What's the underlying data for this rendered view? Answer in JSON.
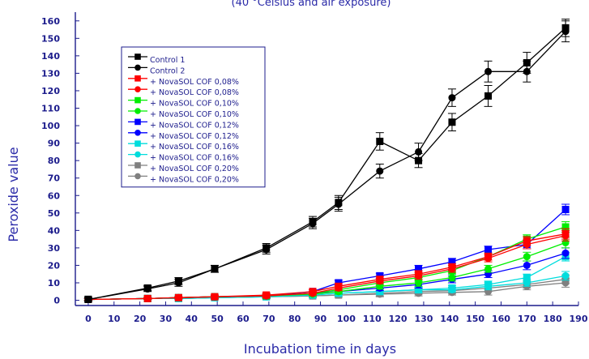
{
  "chart_data": {
    "type": "line",
    "title": "(40 °Celsius and air exposure)",
    "xlabel": "Incubation time in days",
    "ylabel": "Peroxide value",
    "xlim": [
      -5,
      190
    ],
    "ylim": [
      -3,
      165
    ],
    "xticks": [
      0,
      10,
      20,
      30,
      40,
      50,
      60,
      70,
      80,
      90,
      100,
      110,
      120,
      130,
      140,
      150,
      160,
      170,
      180,
      190
    ],
    "yticks": [
      0,
      10,
      20,
      30,
      40,
      50,
      60,
      70,
      80,
      90,
      100,
      110,
      120,
      130,
      140,
      150,
      160
    ],
    "grid": false,
    "legend_position": "upper-left",
    "x": [
      0,
      23,
      35,
      49,
      69,
      87,
      97,
      113,
      128,
      141,
      155,
      170,
      185
    ],
    "series": [
      {
        "name": "Control 1",
        "color": "#000000",
        "marker": "square",
        "values": [
          0.5,
          7,
          11,
          18,
          30,
          45,
          56,
          91,
          80,
          102,
          117,
          136,
          156
        ],
        "errors": [
          1,
          1.5,
          2,
          2,
          2.5,
          3,
          4,
          5,
          4,
          5,
          6,
          6,
          5
        ]
      },
      {
        "name": "Control 2",
        "color": "#000000",
        "marker": "circle",
        "values": [
          0.5,
          6.5,
          10,
          18,
          29,
          44,
          55,
          74,
          85,
          116,
          131,
          131,
          154
        ],
        "errors": [
          1,
          1.5,
          2,
          2,
          2.5,
          3,
          4,
          4,
          5,
          5,
          6,
          6,
          6
        ]
      },
      {
        "name": "+ NovaSOL COF  0,08%",
        "color": "#ff0000",
        "marker": "square",
        "values": [
          0.5,
          1,
          1.5,
          2,
          3,
          5,
          8,
          12,
          15,
          19,
          25,
          34,
          38
        ],
        "errors": [
          0.5,
          0.5,
          0.5,
          1,
          1,
          1,
          1.5,
          1.5,
          2,
          2,
          2,
          2.5,
          3
        ]
      },
      {
        "name": "+ NovaSOL COF  0,08%",
        "color": "#ff0000",
        "marker": "circle",
        "values": [
          0.5,
          1,
          1.5,
          2,
          2.5,
          4,
          7,
          11,
          14,
          18,
          24,
          32,
          37
        ],
        "errors": [
          0.5,
          0.5,
          0.5,
          1,
          1,
          1,
          1.5,
          1.5,
          2,
          2,
          2,
          2.5,
          3
        ]
      },
      {
        "name": "+ NovaSOL COF  0,10%",
        "color": "#00ee00",
        "marker": "square",
        "values": [
          0.5,
          1,
          1.5,
          2,
          2.5,
          4,
          6,
          10,
          13,
          17,
          25,
          35,
          42
        ],
        "errors": [
          0.5,
          0.5,
          0.5,
          1,
          1,
          1,
          1.5,
          1.5,
          2,
          2,
          2,
          2.5,
          3
        ]
      },
      {
        "name": "+ NovaSOL COF  0,10%",
        "color": "#00ee00",
        "marker": "circle",
        "values": [
          0.5,
          1,
          1.5,
          2,
          2.5,
          3.5,
          5,
          8,
          10,
          13,
          18,
          25,
          33
        ],
        "errors": [
          0.5,
          0.5,
          0.5,
          1,
          1,
          1,
          1.5,
          1.5,
          2,
          2,
          2,
          2.5,
          3
        ]
      },
      {
        "name": "+ NovaSOL COF  0,12%",
        "color": "#0000ff",
        "marker": "square",
        "values": [
          0.5,
          1,
          1.5,
          2,
          2.5,
          5,
          10,
          14,
          18,
          22,
          29,
          32,
          52
        ],
        "errors": [
          0.5,
          0.5,
          0.5,
          1,
          1,
          1,
          1.5,
          1.5,
          2,
          2,
          2,
          2.5,
          3
        ]
      },
      {
        "name": "+ NovaSOL COF  0,12%",
        "color": "#0000ff",
        "marker": "circle",
        "values": [
          0.5,
          1,
          1.5,
          2,
          2.5,
          4,
          5,
          7,
          9,
          12,
          15,
          20,
          27
        ],
        "errors": [
          0.5,
          0.5,
          0.5,
          1,
          1,
          1,
          1.5,
          1.5,
          2,
          2,
          2,
          2.5,
          3
        ]
      },
      {
        "name": "+ NovaSOL COF  0,16%",
        "color": "#00dddd",
        "marker": "square",
        "values": [
          0.5,
          1,
          1,
          1.5,
          2,
          3,
          4,
          5,
          6,
          7,
          9,
          13,
          25
        ],
        "errors": [
          0.5,
          0.5,
          0.5,
          1,
          1,
          1,
          1,
          1.5,
          1.5,
          1.5,
          2,
          2,
          2.5
        ]
      },
      {
        "name": "+ NovaSOL COF  0,16%",
        "color": "#00dddd",
        "marker": "circle",
        "values": [
          0.5,
          1,
          1,
          1.5,
          2,
          3,
          4,
          5,
          6,
          6,
          8,
          10,
          14
        ],
        "errors": [
          0.5,
          0.5,
          0.5,
          1,
          1,
          1,
          1,
          1.5,
          1.5,
          1.5,
          2,
          2,
          2.5
        ]
      },
      {
        "name": "+ NovaSOL COF  0,20%",
        "color": "#808080",
        "marker": "square",
        "values": [
          0.5,
          1,
          1,
          1.5,
          2,
          2.5,
          3,
          4,
          5,
          5.5,
          7,
          9,
          12
        ],
        "errors": [
          0.5,
          0.5,
          0.5,
          1,
          1,
          1,
          1,
          1.5,
          1.5,
          1.5,
          2,
          2,
          2.5
        ]
      },
      {
        "name": "+ NovaSOL COF  0,20%",
        "color": "#808080",
        "marker": "circle",
        "values": [
          0.5,
          1,
          1,
          1.5,
          2,
          2.5,
          3,
          3.5,
          4,
          4.5,
          5,
          8,
          10
        ],
        "errors": [
          0.5,
          0.5,
          0.5,
          1,
          1,
          1,
          1,
          1.5,
          1.5,
          1.5,
          2,
          2,
          2.5
        ]
      }
    ]
  }
}
